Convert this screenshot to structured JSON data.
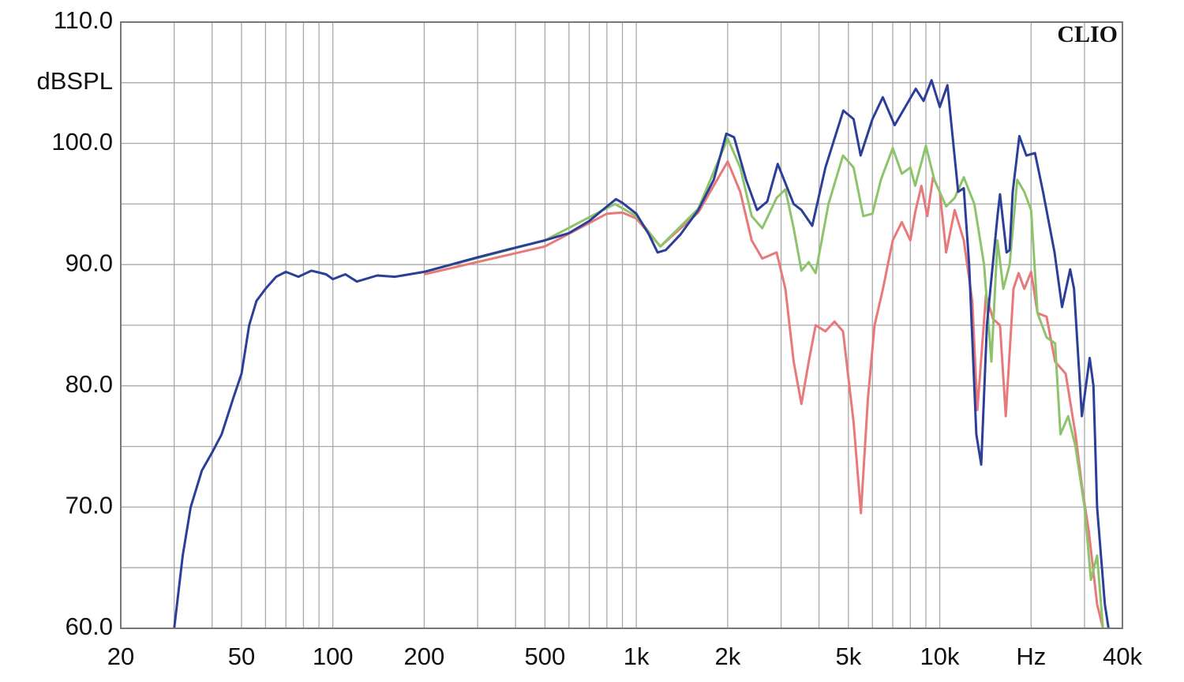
{
  "chart_data": {
    "type": "line",
    "xscale": "log",
    "annotation": "CLIO",
    "xlim": [
      20,
      40000
    ],
    "ylim": [
      60,
      110
    ],
    "grid": true,
    "xticks": [
      20,
      50,
      100,
      200,
      500,
      {
        "value": 1000,
        "label": "1k"
      },
      {
        "value": 2000,
        "label": "2k"
      },
      {
        "value": 5000,
        "label": "5k"
      },
      {
        "value": 10000,
        "label": "10k"
      },
      {
        "value": 20000,
        "label": "Hz"
      },
      {
        "value": 40000,
        "label": "40k"
      }
    ],
    "yticks": [
      {
        "value": 60,
        "label": "60.0"
      },
      {
        "value": 70,
        "label": "70.0"
      },
      {
        "value": 80,
        "label": "80.0"
      },
      {
        "value": 90,
        "label": "90.0"
      },
      {
        "value": 100,
        "label": "100.0"
      },
      {
        "value": 105,
        "label": "dBSPL"
      },
      {
        "value": 110,
        "label": "110.0"
      }
    ],
    "yminor_ticks": [
      65,
      75,
      85,
      95
    ],
    "series": [
      {
        "color": "#e8797b",
        "x": [
          200,
          500,
          800,
          900,
          1000,
          1200,
          1600,
          2000,
          2200,
          2400,
          2600,
          2900,
          3100,
          3300,
          3500,
          3700,
          3900,
          4200,
          4500,
          4800,
          5200,
          5500,
          5800,
          6100,
          6500,
          7000,
          7500,
          8000,
          8300,
          8700,
          9100,
          9500,
          10000,
          10500,
          11200,
          12000,
          12800,
          13300,
          14200,
          15000,
          15800,
          16500,
          17500,
          18200,
          19000,
          20000,
          21000,
          22500,
          24000,
          26000,
          28000,
          29500,
          31000,
          33000,
          34500
        ],
        "values": [
          89.2,
          91.5,
          94.2,
          94.3,
          93.8,
          91.5,
          94.3,
          98.5,
          96,
          92,
          90.5,
          91,
          88,
          82,
          78.5,
          82,
          85,
          84.5,
          85.3,
          84.5,
          77,
          69.5,
          79,
          85,
          88,
          92,
          93.5,
          92,
          94.3,
          96.5,
          94,
          97.2,
          96,
          91,
          94.5,
          92,
          87,
          78,
          87.5,
          85.5,
          85,
          77.5,
          88,
          89.3,
          88,
          89.4,
          86,
          85.7,
          82,
          81,
          76,
          71.5,
          68,
          62,
          60
        ]
      },
      {
        "color": "#8dc46b",
        "x": [
          200,
          500,
          850,
          1000,
          1200,
          1600,
          2000,
          2200,
          2400,
          2600,
          2900,
          3100,
          3300,
          3500,
          3700,
          3900,
          4300,
          4800,
          5200,
          5600,
          6000,
          6400,
          7000,
          7500,
          8000,
          8300,
          9000,
          9600,
          10500,
          11200,
          12000,
          13000,
          14000,
          14800,
          15500,
          16200,
          17000,
          18000,
          19000,
          20000,
          21000,
          22500,
          24000,
          25000,
          26500,
          28000,
          30000,
          31500,
          33000,
          34500
        ],
        "values": [
          89.4,
          92,
          95,
          94,
          91.5,
          94.6,
          100.4,
          98,
          94,
          93,
          95.5,
          96.2,
          93,
          89.5,
          90.2,
          89.3,
          95,
          99,
          98,
          94,
          94.2,
          97,
          99.6,
          97.5,
          98,
          96.5,
          99.8,
          97,
          94.8,
          95.5,
          97.2,
          95,
          90,
          82,
          92,
          88,
          90,
          97,
          96,
          94.5,
          86,
          84,
          83.5,
          76,
          77.5,
          75,
          70,
          64,
          66,
          60
        ]
      },
      {
        "color": "#2b3e98",
        "x": [
          30,
          32,
          34,
          37,
          40,
          43,
          47,
          50,
          53,
          56,
          60,
          65,
          70,
          77,
          85,
          95,
          100,
          110,
          120,
          140,
          160,
          200,
          300,
          400,
          500,
          600,
          700,
          800,
          857,
          900,
          1000,
          1100,
          1175,
          1250,
          1400,
          1600,
          1800,
          1980,
          2100,
          2300,
          2500,
          2700,
          2925,
          3300,
          3500,
          3800,
          4200,
          4810,
          5200,
          5485,
          6000,
          6490,
          7100,
          8340,
          8840,
          9400,
          10000,
          10600,
          11500,
          12000,
          12500,
          13200,
          13700,
          14300,
          15500,
          15800,
          16600,
          17000,
          17400,
          18300,
          19300,
          20600,
          21900,
          23900,
          25300,
          26900,
          27700,
          29400,
          31200,
          32100,
          33000,
          35000,
          36000
        ],
        "values": [
          60,
          66,
          70,
          73,
          74.5,
          76,
          79,
          81,
          85,
          87,
          88,
          89,
          89.4,
          89,
          89.5,
          89.2,
          88.8,
          89.2,
          88.6,
          89.1,
          89,
          89.4,
          90.6,
          91.4,
          92,
          92.6,
          93.6,
          94.8,
          95.4,
          95.1,
          94.2,
          92.5,
          91,
          91.2,
          92.5,
          94.5,
          97,
          100.8,
          100.5,
          97,
          94.5,
          95.2,
          98.3,
          95,
          94.5,
          93.2,
          98,
          102.7,
          102,
          99,
          102,
          103.8,
          101.5,
          104.5,
          103.5,
          105.2,
          103,
          104.8,
          96,
          96.3,
          90,
          76,
          73.5,
          85,
          94,
          95.8,
          91,
          91.2,
          96,
          100.6,
          99,
          99.2,
          96,
          91,
          86.5,
          89.6,
          88,
          77.5,
          82.3,
          80,
          70,
          62,
          60
        ]
      }
    ]
  }
}
